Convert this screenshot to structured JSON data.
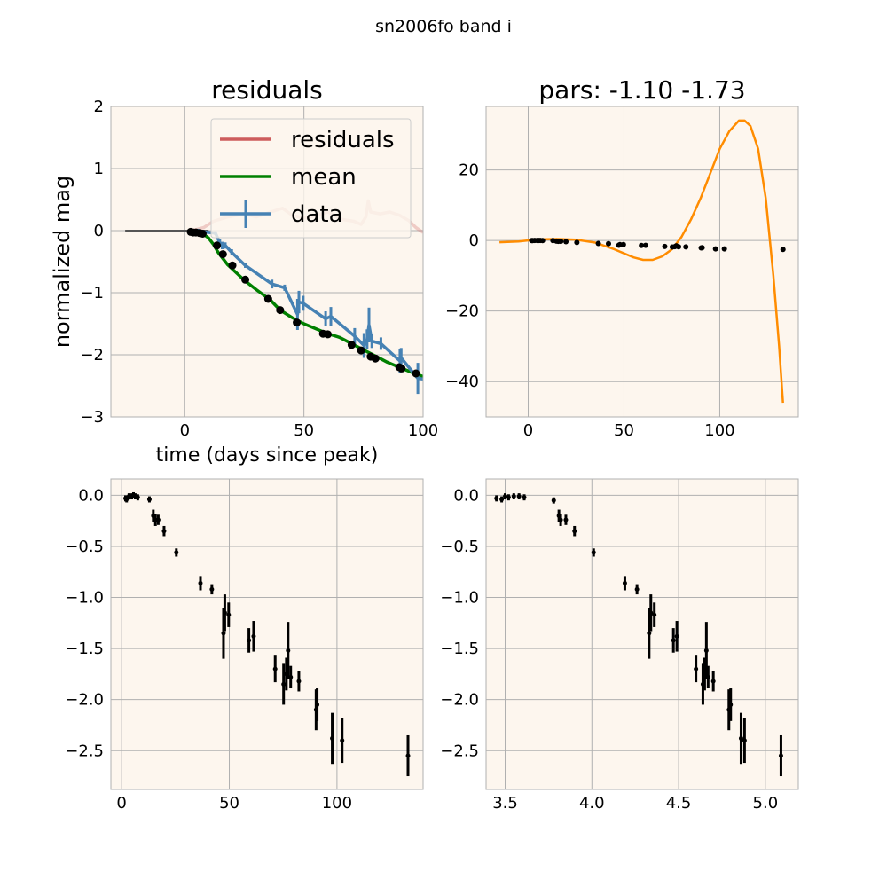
{
  "figure": {
    "suptitle": "sn2006fo band i"
  },
  "chart_data": [
    {
      "type": "line",
      "title": "residuals",
      "xlabel": "time (days since peak)",
      "ylabel": "normalized mag",
      "xlim": [
        -31,
        100
      ],
      "ylim": [
        -3,
        2
      ],
      "xticks": [
        0,
        50,
        100
      ],
      "yticks": [
        -3,
        -2,
        -1,
        0,
        1,
        2
      ],
      "grid": true,
      "legend": {
        "position": "upper right",
        "entries": [
          "residuals",
          "mean",
          "data"
        ]
      },
      "colors": {
        "residuals": "#cd5c5c",
        "mean": "#008000",
        "data": "#4682b4",
        "zero_line": "#555555"
      },
      "zero_line": {
        "x": [
          -25,
          10
        ],
        "y": [
          0,
          0
        ]
      },
      "series": [
        {
          "name": "residuals",
          "x": [
            1.8,
            5,
            8,
            12,
            18,
            25,
            30,
            36,
            41,
            45,
            50,
            56,
            60,
            66,
            71,
            74,
            76,
            77,
            78,
            82,
            86,
            90,
            94,
            97,
            100
          ],
          "y": [
            0,
            0.02,
            0.05,
            0.15,
            0.22,
            0.27,
            0.22,
            0.3,
            0.36,
            0.25,
            0.2,
            0.25,
            0.3,
            0.18,
            0.15,
            0.1,
            0.22,
            0.48,
            0.3,
            0.27,
            0.3,
            0.25,
            0.16,
            0.05,
            -0.03
          ]
        },
        {
          "name": "mean",
          "x": [
            1.8,
            5,
            8,
            10,
            12,
            14,
            16,
            18,
            20,
            25,
            30,
            36,
            40,
            45,
            50,
            55,
            60,
            65,
            70,
            75,
            80,
            85,
            90,
            95,
            100
          ],
          "y": [
            0,
            -0.02,
            -0.06,
            -0.12,
            -0.22,
            -0.35,
            -0.45,
            -0.55,
            -0.62,
            -0.8,
            -0.95,
            -1.12,
            -1.28,
            -1.4,
            -1.5,
            -1.58,
            -1.66,
            -1.72,
            -1.82,
            -1.92,
            -2.02,
            -2.12,
            -2.2,
            -2.28,
            -2.35
          ]
        },
        {
          "name": "data",
          "x": [
            1.8,
            2.3,
            3.4,
            4.7,
            5.5,
            6.3,
            7.5,
            12.9,
            14.7,
            15.7,
            17,
            19.7,
            25.4,
            36.6,
            41.9,
            47.3,
            47.9,
            49.7,
            59.1,
            61.3,
            71.3,
            75.2,
            76.5,
            77.3,
            78.5,
            82.3,
            90.3,
            90.8,
            97.8,
            102.4
          ],
          "y": [
            -0.03,
            -0.04,
            -0.01,
            -0.01,
            0.0,
            -0.01,
            -0.02,
            -0.04,
            -0.2,
            -0.24,
            -0.24,
            -0.35,
            -0.56,
            -0.86,
            -0.92,
            -1.35,
            -1.15,
            -1.17,
            -1.42,
            -1.38,
            -1.7,
            -1.85,
            -1.75,
            -1.52,
            -1.78,
            -1.82,
            -2.1,
            -2.05,
            -2.38,
            -2.4
          ],
          "err": [
            0.03,
            0.03,
            0.03,
            0.03,
            0.03,
            0.03,
            0.03,
            0.03,
            0.06,
            0.06,
            0.05,
            0.05,
            0.04,
            0.07,
            0.05,
            0.25,
            0.18,
            0.12,
            0.12,
            0.15,
            0.13,
            0.2,
            0.16,
            0.28,
            0.11,
            0.1,
            0.2,
            0.16,
            0.25,
            0.22
          ]
        },
        {
          "name": "samples",
          "x": [
            2.5,
            3.5,
            4.7,
            6.3,
            7.5,
            13.5,
            16,
            20,
            25.4,
            35,
            40,
            47,
            58,
            60,
            70,
            74,
            78,
            80,
            90,
            91,
            97
          ],
          "y": [
            -0.02,
            -0.03,
            -0.03,
            -0.04,
            -0.05,
            -0.24,
            -0.38,
            -0.56,
            -0.79,
            -1.1,
            -1.28,
            -1.48,
            -1.66,
            -1.67,
            -1.84,
            -1.93,
            -2.03,
            -2.06,
            -2.2,
            -2.22,
            -2.3
          ]
        }
      ]
    },
    {
      "type": "line",
      "title": "pars: -1.10 -1.73",
      "xlim": [
        -22,
        141
      ],
      "ylim": [
        -50,
        38
      ],
      "xticks": [
        0,
        50,
        100
      ],
      "yticks": [
        -40,
        -20,
        0,
        20
      ],
      "grid": true,
      "colors": {
        "curve": "#ff8c00",
        "points": "#000000"
      },
      "series": [
        {
          "name": "curve",
          "x": [
            -15,
            -5,
            5,
            15,
            25,
            35,
            45,
            55,
            60,
            65,
            70,
            75,
            80,
            85,
            90,
            95,
            100,
            105,
            110,
            113,
            116,
            120,
            124,
            128,
            131,
            133
          ],
          "y": [
            -0.5,
            -0.3,
            0.3,
            0.4,
            0.2,
            -0.6,
            -2.5,
            -4.8,
            -5.5,
            -5.5,
            -4.5,
            -2.5,
            1,
            6,
            12,
            19,
            26,
            31,
            34,
            34,
            32.5,
            26,
            12,
            -10,
            -30,
            -46
          ]
        },
        {
          "name": "points",
          "x": [
            1.8,
            2.3,
            3.4,
            4.7,
            5.5,
            6.3,
            7.5,
            12.9,
            14.7,
            15.7,
            17,
            19.7,
            25.4,
            36.6,
            41.9,
            47.3,
            47.9,
            49.7,
            59.1,
            61.3,
            71.3,
            75.2,
            76.5,
            77.3,
            78.5,
            82.3,
            90.3,
            90.8,
            97.8,
            102.4,
            133
          ],
          "y": [
            -0.03,
            -0.04,
            -0.01,
            -0.01,
            0.0,
            -0.01,
            -0.02,
            -0.04,
            -0.2,
            -0.24,
            -0.24,
            -0.35,
            -0.56,
            -0.86,
            -0.92,
            -1.35,
            -1.15,
            -1.17,
            -1.42,
            -1.38,
            -1.7,
            -1.85,
            -1.75,
            -1.52,
            -1.78,
            -1.82,
            -2.1,
            -2.05,
            -2.38,
            -2.4,
            -2.55
          ]
        }
      ]
    },
    {
      "type": "scatter",
      "xlim": [
        -5,
        140
      ],
      "ylim": [
        -2.88,
        0.16
      ],
      "xticks": [
        0,
        50,
        100
      ],
      "yticks": [
        -2.5,
        -2.0,
        -1.5,
        -1.0,
        -0.5,
        0.0
      ],
      "ytick_labels": [
        "−2.5",
        "−2.0",
        "−1.5",
        "−1.0",
        "−0.5",
        "0.0"
      ],
      "grid": true,
      "series": [
        {
          "name": "",
          "x": [
            1.8,
            2.3,
            3.4,
            4.7,
            5.5,
            6.3,
            7.5,
            12.9,
            14.7,
            15.7,
            17,
            19.7,
            25.4,
            36.6,
            41.9,
            47.3,
            47.9,
            49.7,
            59.1,
            61.3,
            71.3,
            75.2,
            76.5,
            77.3,
            78.5,
            82.3,
            90.3,
            90.8,
            97.8,
            102.4,
            133
          ],
          "y": [
            -0.03,
            -0.04,
            -0.01,
            -0.01,
            0.0,
            -0.01,
            -0.02,
            -0.04,
            -0.2,
            -0.24,
            -0.24,
            -0.35,
            -0.56,
            -0.86,
            -0.92,
            -1.35,
            -1.15,
            -1.17,
            -1.42,
            -1.38,
            -1.7,
            -1.85,
            -1.75,
            -1.52,
            -1.78,
            -1.82,
            -2.1,
            -2.05,
            -2.38,
            -2.4,
            -2.55
          ],
          "err": [
            0.03,
            0.03,
            0.03,
            0.03,
            0.03,
            0.03,
            0.03,
            0.03,
            0.06,
            0.06,
            0.05,
            0.05,
            0.04,
            0.07,
            0.05,
            0.25,
            0.18,
            0.12,
            0.12,
            0.15,
            0.13,
            0.2,
            0.16,
            0.28,
            0.11,
            0.1,
            0.2,
            0.16,
            0.25,
            0.22,
            0.2
          ]
        }
      ]
    },
    {
      "type": "scatter",
      "xlim": [
        3.39,
        5.19
      ],
      "ylim": [
        -2.88,
        0.16
      ],
      "xticks": [
        3.5,
        4.0,
        4.5,
        5.0
      ],
      "xtick_labels": [
        "3.5",
        "4.0",
        "4.5",
        "5.0"
      ],
      "yticks": [
        -2.5,
        -2.0,
        -1.5,
        -1.0,
        -0.5,
        0.0
      ],
      "ytick_labels": [
        "−2.5",
        "−2.0",
        "−1.5",
        "−1.0",
        "−0.5",
        "0.0"
      ],
      "grid": true,
      "series": [
        {
          "name": "",
          "x": [
            3.45,
            3.48,
            3.5,
            3.52,
            3.55,
            3.58,
            3.61,
            3.78,
            3.81,
            3.82,
            3.85,
            3.9,
            4.01,
            4.19,
            4.26,
            4.33,
            4.34,
            4.36,
            4.47,
            4.49,
            4.6,
            4.64,
            4.65,
            4.66,
            4.67,
            4.7,
            4.79,
            4.8,
            4.86,
            4.88,
            5.09
          ],
          "y": [
            -0.03,
            -0.04,
            -0.01,
            -0.02,
            -0.01,
            -0.01,
            -0.02,
            -0.05,
            -0.2,
            -0.24,
            -0.24,
            -0.35,
            -0.56,
            -0.86,
            -0.92,
            -1.35,
            -1.15,
            -1.17,
            -1.42,
            -1.38,
            -1.7,
            -1.85,
            -1.75,
            -1.52,
            -1.78,
            -1.82,
            -2.1,
            -2.05,
            -2.38,
            -2.4,
            -2.55
          ],
          "err": [
            0.03,
            0.03,
            0.03,
            0.03,
            0.03,
            0.03,
            0.03,
            0.03,
            0.06,
            0.06,
            0.05,
            0.05,
            0.04,
            0.07,
            0.05,
            0.25,
            0.18,
            0.12,
            0.12,
            0.15,
            0.13,
            0.2,
            0.16,
            0.28,
            0.11,
            0.1,
            0.2,
            0.16,
            0.25,
            0.22,
            0.2
          ]
        }
      ]
    }
  ]
}
